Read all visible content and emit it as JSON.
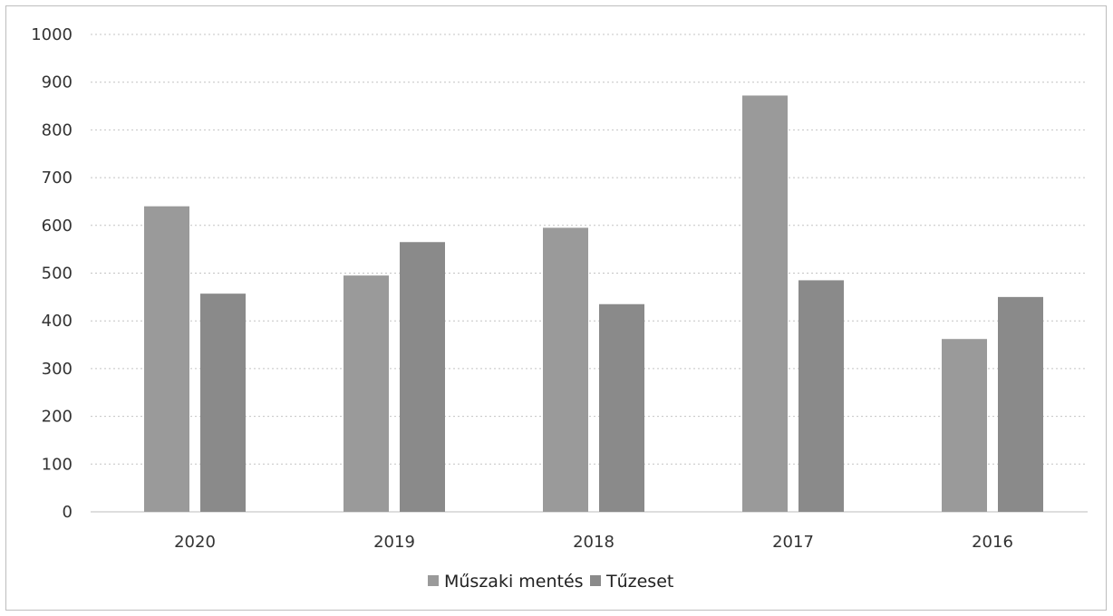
{
  "chart_data": {
    "type": "bar",
    "title": "",
    "xlabel": "",
    "ylabel": "",
    "categories": [
      "2020",
      "2019",
      "2018",
      "2017",
      "2016"
    ],
    "series": [
      {
        "name": "Műszaki mentés",
        "values": [
          640,
          495,
          595,
          872,
          362
        ],
        "color": "#9a9a9a"
      },
      {
        "name": "Tűzeset",
        "values": [
          457,
          565,
          435,
          485,
          450
        ],
        "color": "#8a8a8a"
      }
    ],
    "ylim": [
      0,
      1000
    ],
    "yticks": [
      0,
      100,
      200,
      300,
      400,
      500,
      600,
      700,
      800,
      900,
      1000
    ],
    "grid": true,
    "legend_position": "bottom"
  }
}
